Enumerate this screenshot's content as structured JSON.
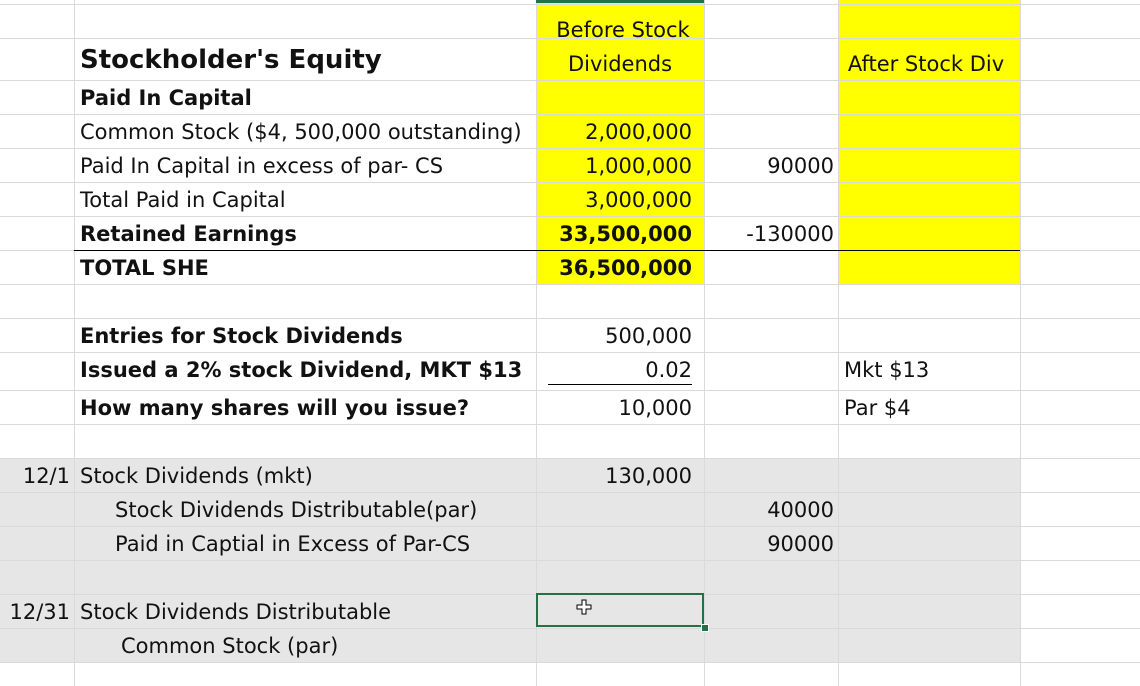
{
  "sheet": {
    "title": "Stockholder's Equity",
    "header_before": [
      "Before Stock",
      "Dividends"
    ],
    "header_after": "After Stock Div",
    "rows": {
      "paid_in_capital": "Paid In Capital",
      "common_stock": {
        "label": "Common Stock ($4, 500,000 outstanding)",
        "before": "2,000,000"
      },
      "pic_excess": {
        "label": "Paid In Capital in excess of par- CS",
        "before": "1,000,000",
        "change": "90000"
      },
      "total_pic": {
        "label": "Total Paid in Capital",
        "before": "3,000,000"
      },
      "retained_earnings": {
        "label": "Retained Earnings",
        "before": "33,500,000",
        "change": "-130000"
      },
      "total_she": {
        "label": "TOTAL SHE",
        "before": "36,500,000"
      },
      "entries_header": {
        "label": "Entries for Stock Dividends",
        "value": "500,000"
      },
      "issued": {
        "label": "Issued a 2% stock Dividend, MKT $13",
        "value": "0.02",
        "note": "Mkt $13"
      },
      "how_many": {
        "label": "How many shares will you issue?",
        "value": "10,000",
        "note": "Par $4"
      }
    },
    "journal": {
      "entry1": {
        "date": "12/1",
        "debit_label": "Stock Dividends (mkt)",
        "debit_amount": "130,000",
        "credit1_label": "Stock Dividends Distributable(par)",
        "credit1_amount": "40000",
        "credit2_label": "Paid in Captial in Excess of Par-CS",
        "credit2_amount": "90000"
      },
      "entry2": {
        "date": "12/31",
        "debit_label": "Stock Dividends Distributable",
        "credit_label": "Common Stock (par)"
      }
    }
  },
  "colors": {
    "highlight": "#ffff00",
    "journal_fill": "#e6e6e6",
    "selection": "#217346"
  },
  "icons": {
    "cursor": "plus-cursor-icon"
  }
}
